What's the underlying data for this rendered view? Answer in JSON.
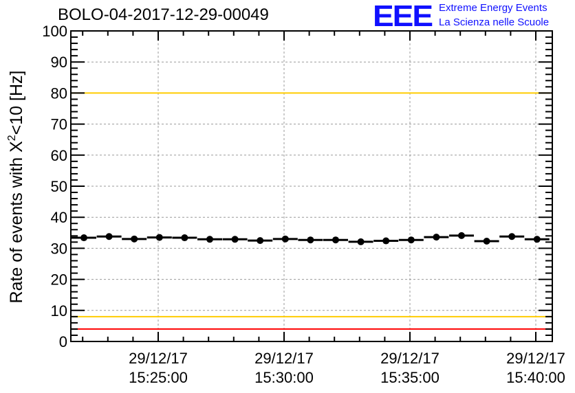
{
  "header": {
    "title": "BOLO-04-2017-12-29-00049",
    "logo": "EEE",
    "logo_line1": "Extreme Energy Events",
    "logo_line2": "La Scienza nelle Scuole"
  },
  "chart_data": {
    "type": "scatter",
    "title": "BOLO-04-2017-12-29-00049",
    "ylabel": "Rate of events with X²<10 [Hz]",
    "ylabel_main": "Rate of events with X",
    "ylabel_sup": "2",
    "ylabel_tail": "<10 [Hz]",
    "xlabel": "",
    "ylim": [
      0,
      100
    ],
    "xlim_minutes": [
      15.4833,
      15.6778
    ],
    "yticks": [
      "0",
      "10",
      "20",
      "30",
      "40",
      "50",
      "60",
      "70",
      "80",
      "90",
      "100"
    ],
    "xticks": [
      {
        "date": "29/12/17",
        "time": "15:25:00",
        "minute": 25
      },
      {
        "date": "29/12/17",
        "time": "15:30:00",
        "minute": 30
      },
      {
        "date": "29/12/17",
        "time": "15:35:00",
        "minute": 35
      },
      {
        "date": "29/12/17",
        "time": "15:40:00",
        "minute": 40
      }
    ],
    "x_minutes": [
      22,
      23,
      24,
      25,
      26,
      27,
      28,
      29,
      30,
      31,
      32,
      33,
      34,
      35,
      36,
      37,
      38,
      39,
      40
    ],
    "values": [
      33.4,
      33.8,
      33.0,
      33.5,
      33.4,
      32.9,
      32.9,
      32.5,
      33.0,
      32.7,
      32.7,
      32.1,
      32.4,
      32.7,
      33.6,
      34.1,
      32.3,
      33.8,
      32.9
    ],
    "reference_lines": [
      {
        "value": 100,
        "color": "#ff0000"
      },
      {
        "value": 80,
        "color": "#ffcc00"
      },
      {
        "value": 8,
        "color": "#ffcc00"
      },
      {
        "value": 4,
        "color": "#ff0000"
      }
    ],
    "grid": true,
    "marker_color": "#000000"
  }
}
